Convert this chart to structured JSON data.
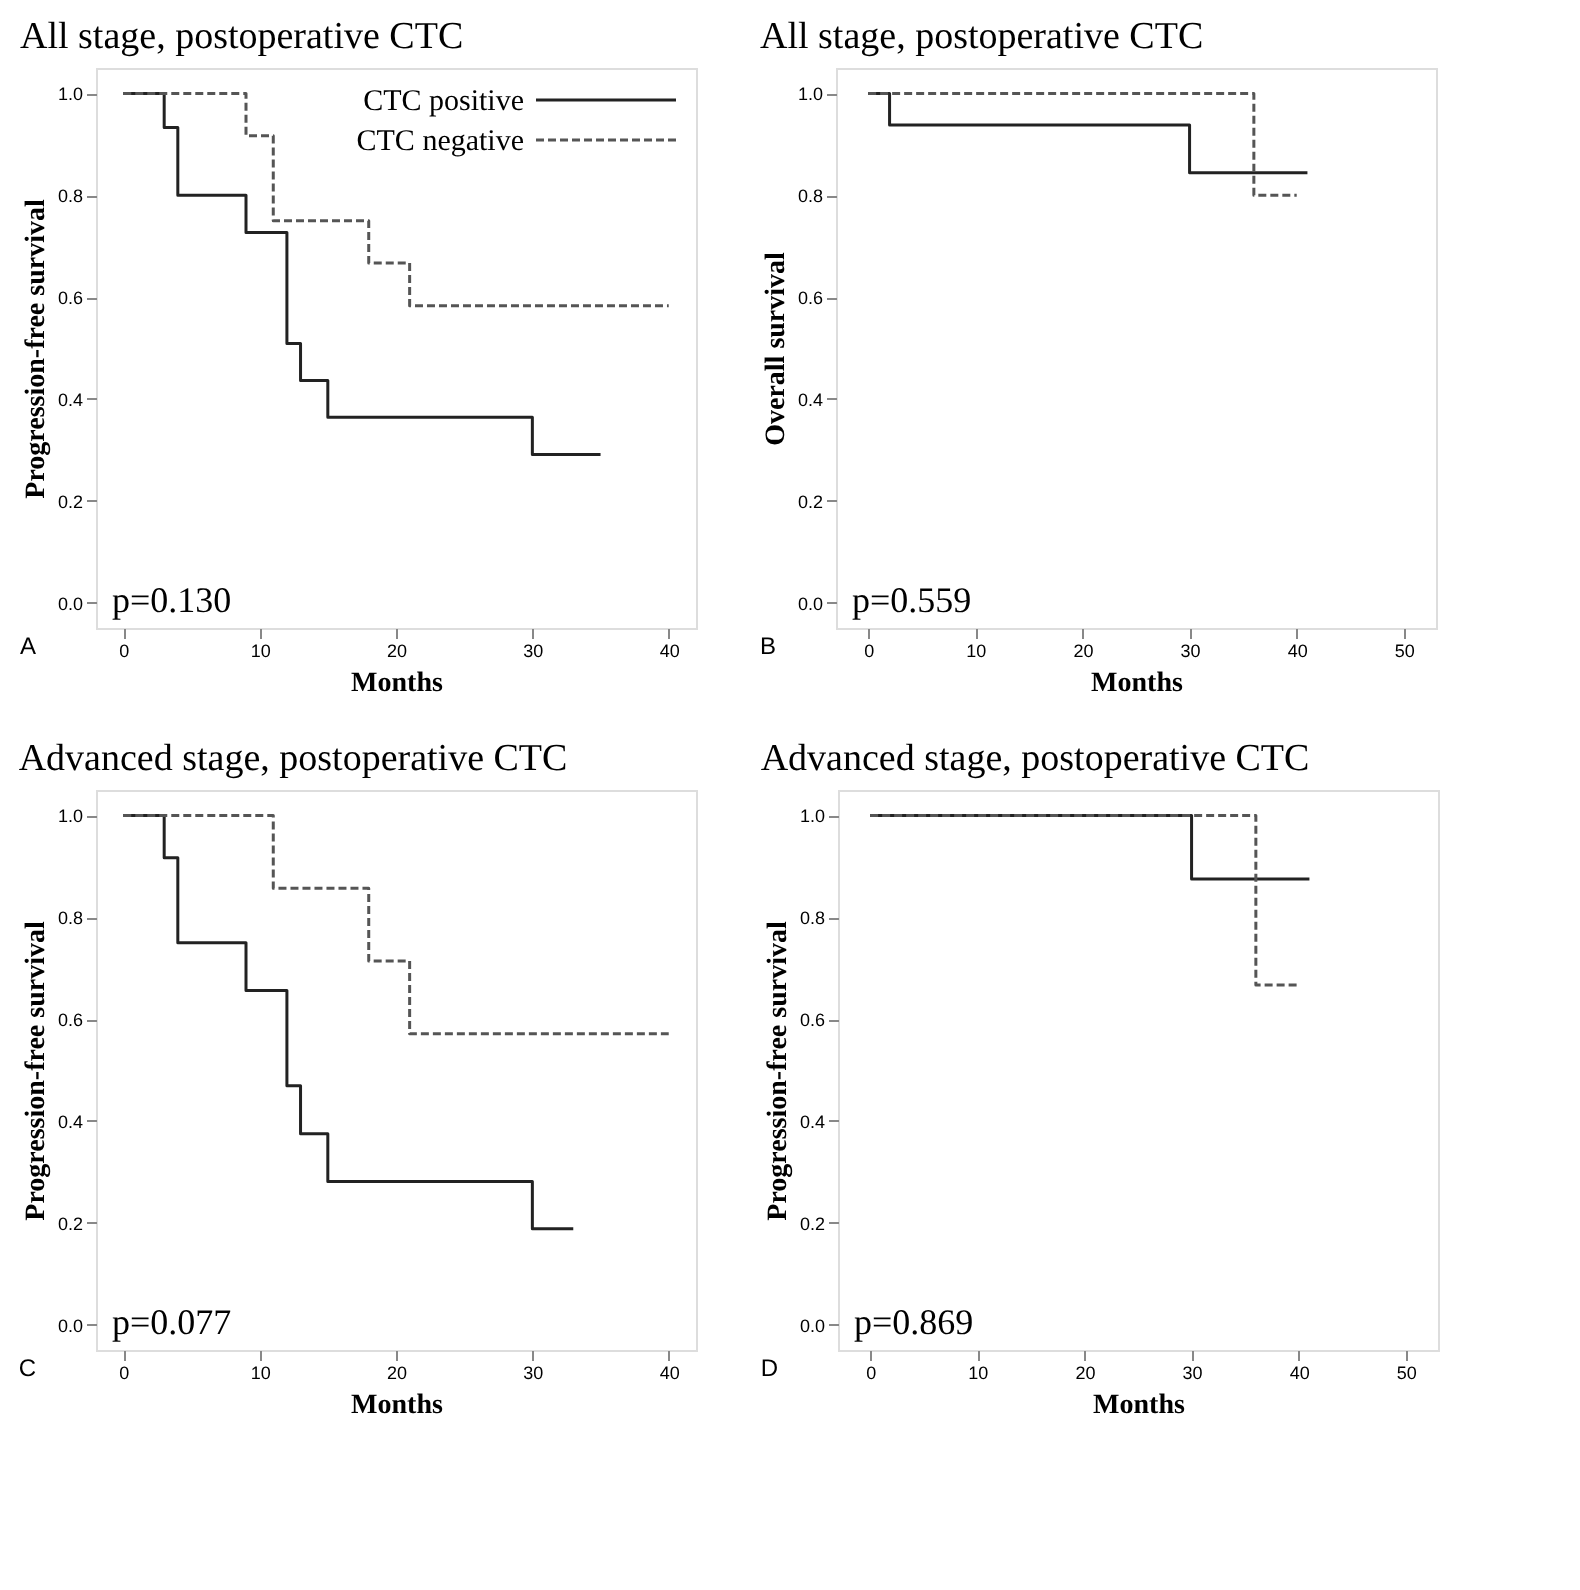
{
  "chart_data": [
    {
      "type": "step",
      "title": "All stage, postoperative CTC",
      "xlabel": "Months",
      "ylabel": "Progression-free survival",
      "annotations": [
        "p=0.130",
        "A"
      ],
      "legend": "top right",
      "grid": false,
      "xlim": [
        -2,
        42
      ],
      "xticks": [
        0,
        10,
        20,
        30,
        40
      ],
      "ylim": [
        -0.05,
        1.05
      ],
      "yticks": [
        {
          "value": 0,
          "label": "0.0"
        },
        {
          "value": 0.2,
          "label": "0.2"
        },
        {
          "value": 0.4,
          "label": "0.4"
        },
        {
          "value": 0.6,
          "label": "0.6"
        },
        {
          "value": 0.8,
          "label": "0.8"
        },
        {
          "value": 1,
          "label": "1.0"
        }
      ],
      "series": [
        {
          "name": "CTC positive",
          "color": "#222222",
          "line_style": "solid",
          "x": [
            0,
            3,
            4,
            9,
            12,
            13,
            15,
            30,
            35
          ],
          "values": [
            1,
            0.933,
            0.8,
            0.727,
            0.509,
            0.436,
            0.364,
            0.291,
            0.291
          ]
        },
        {
          "name": "CTC negative",
          "color": "#555555",
          "line_style": "dashed",
          "x": [
            0,
            9,
            11,
            18,
            21,
            40
          ],
          "values": [
            1,
            0.917,
            0.75,
            0.667,
            0.583,
            0.583
          ]
        }
      ]
    },
    {
      "type": "step",
      "title": "All stage, postoperative CTC",
      "xlabel": "Months",
      "ylabel": "Overall survival",
      "annotations": [
        "p=0.559",
        "B"
      ],
      "grid": false,
      "xlim": [
        -3,
        53
      ],
      "xticks": [
        0,
        10,
        20,
        30,
        40,
        50
      ],
      "ylim": [
        -0.05,
        1.05
      ],
      "yticks": [
        {
          "value": 0,
          "label": "0.0"
        },
        {
          "value": 0.2,
          "label": "0.2"
        },
        {
          "value": 0.4,
          "label": "0.4"
        },
        {
          "value": 0.6,
          "label": "0.6"
        },
        {
          "value": 0.8,
          "label": "0.8"
        },
        {
          "value": 1,
          "label": "1.0"
        }
      ],
      "series": [
        {
          "color": "#222222",
          "line_style": "solid",
          "x": [
            0,
            2,
            30,
            41
          ],
          "values": [
            1,
            0.938,
            0.844,
            0.844
          ]
        },
        {
          "color": "#555555",
          "line_style": "dashed",
          "x": [
            0,
            36,
            40
          ],
          "values": [
            1,
            0.8,
            0.8
          ]
        }
      ]
    },
    {
      "type": "step",
      "title": "Advanced stage, postoperative CTC",
      "xlabel": "Months",
      "ylabel": "Progression-free survival",
      "annotations": [
        "p=0.077",
        "C"
      ],
      "grid": false,
      "xlim": [
        -2,
        42
      ],
      "xticks": [
        0,
        10,
        20,
        30,
        40
      ],
      "ylim": [
        -0.05,
        1.05
      ],
      "yticks": [
        {
          "value": 0,
          "label": "0.0"
        },
        {
          "value": 0.2,
          "label": "0.2"
        },
        {
          "value": 0.4,
          "label": "0.4"
        },
        {
          "value": 0.6,
          "label": "0.6"
        },
        {
          "value": 0.8,
          "label": "0.8"
        },
        {
          "value": 1,
          "label": "1.0"
        }
      ],
      "series": [
        {
          "color": "#222222",
          "line_style": "solid",
          "x": [
            0,
            3,
            4,
            9,
            12,
            13,
            15,
            30,
            33
          ],
          "values": [
            1,
            0.917,
            0.75,
            0.656,
            0.469,
            0.375,
            0.281,
            0.188,
            0.188
          ]
        },
        {
          "color": "#555555",
          "line_style": "dashed",
          "x": [
            0,
            11,
            18,
            21,
            40
          ],
          "values": [
            1,
            0.857,
            0.714,
            0.571,
            0.571
          ]
        }
      ]
    },
    {
      "type": "step",
      "title": "Advanced stage, postoperative CTC",
      "xlabel": "Months",
      "ylabel": "Progression-free survival",
      "annotations": [
        "p=0.869",
        "D"
      ],
      "grid": false,
      "xlim": [
        -3,
        53
      ],
      "xticks": [
        0,
        10,
        20,
        30,
        40,
        50
      ],
      "ylim": [
        -0.05,
        1.05
      ],
      "yticks": [
        {
          "value": 0,
          "label": "0.0"
        },
        {
          "value": 0.2,
          "label": "0.2"
        },
        {
          "value": 0.4,
          "label": "0.4"
        },
        {
          "value": 0.6,
          "label": "0.6"
        },
        {
          "value": 0.8,
          "label": "0.8"
        },
        {
          "value": 1,
          "label": "1.0"
        }
      ],
      "series": [
        {
          "color": "#222222",
          "line_style": "solid",
          "x": [
            0,
            30,
            41
          ],
          "values": [
            1,
            0.875,
            0.875
          ]
        },
        {
          "color": "#555555",
          "line_style": "dashed",
          "x": [
            0,
            36,
            40
          ],
          "values": [
            1,
            0.667,
            0.667
          ]
        }
      ]
    }
  ]
}
